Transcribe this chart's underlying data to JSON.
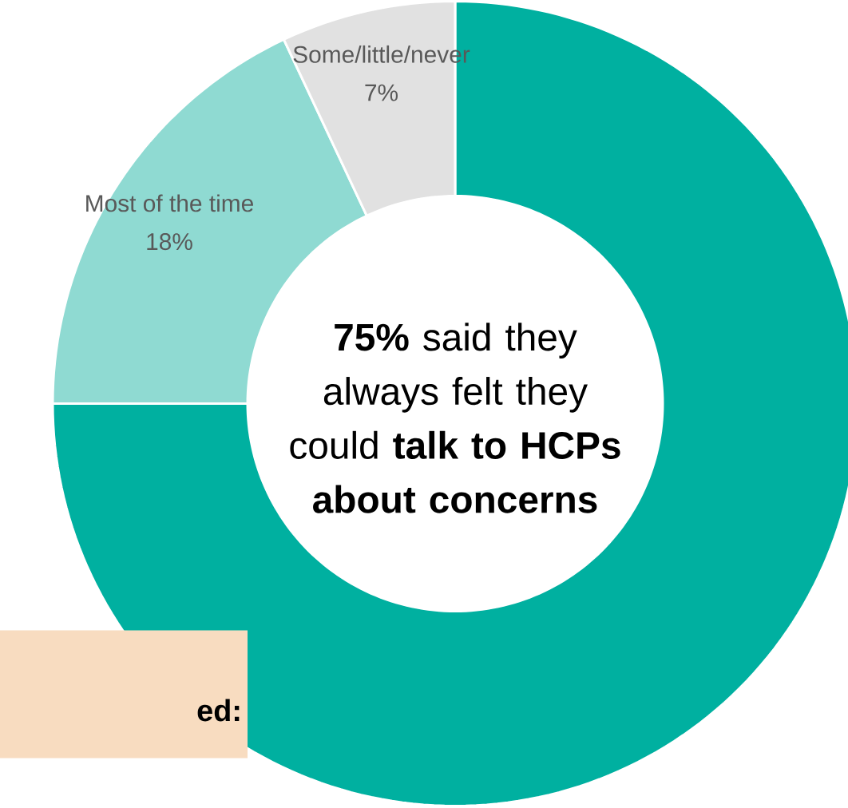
{
  "chart_data": {
    "type": "donut",
    "categories": [
      null,
      "Most of the time",
      "Some/little/never"
    ],
    "values": [
      75,
      18,
      7
    ],
    "value_labels": [
      null,
      "18%",
      "7%"
    ],
    "colors": [
      "#00b0a0",
      "#8fdad2",
      "#e1e1e1"
    ],
    "annotations": [
      "**75%** said they always felt they could **talk to HCPs about concerns**",
      "ed:"
    ]
  }
}
